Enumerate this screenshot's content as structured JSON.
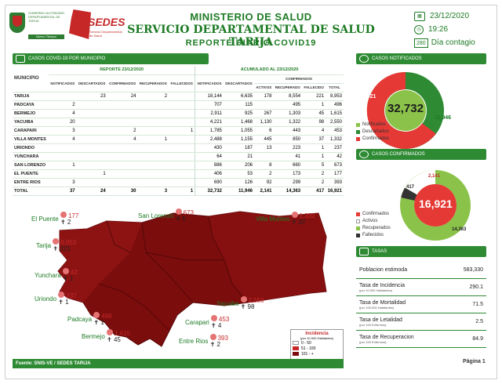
{
  "header": {
    "gob_text": "GOBIERNO AUTÓNOMO DEPARTAMENTAL DE TARIJA",
    "gob_bar": "Nuevo Tiempo",
    "sedes_logo": "SEDES",
    "sedes_sub": "Servicio Departamental de Salud",
    "title1": "MINISTERIO DE SALUD",
    "title2": "SERVICIO DEPARTAMENTAL DE SALUD TARIJA",
    "title3": "REPORTE DIARIO COVID19",
    "date": "23/12/2020",
    "time": "19:26",
    "day_num": "280",
    "day_label": "Día contagio"
  },
  "sections": {
    "table_bar": "CASOS COVID-19 POR MUNICIPIO",
    "notified_bar": "CASOS NOTIFICADOS",
    "confirmed_bar": "CASOS CONFIRMADOS",
    "tasas_bar": "TASAS"
  },
  "table": {
    "report_header": "REPORTE 23/12/2020",
    "accum_header": "ACUMULADO AL 23/12/2020",
    "confirmed_group": "CONFIRMADOS",
    "col_municipio": "MUNICIPIO",
    "cols_report": [
      "NOTIFICADOS",
      "DESCARTADOS",
      "CONFIRMADOS",
      "RECUPERADOS",
      "FALLECIDOS"
    ],
    "cols_accum": [
      "NOTIFICADOS",
      "DESCARTADOS",
      "ACTIVOS",
      "RECUPERADO",
      "FALLECIDO",
      "TOTAL"
    ],
    "rows": [
      {
        "m": "TARIJA",
        "r": [
          "",
          "23",
          "24",
          "2",
          ""
        ],
        "a": [
          "18,144",
          "6,635",
          "178",
          "8,554",
          "221",
          "8,953"
        ]
      },
      {
        "m": "PADCAYA",
        "r": [
          "2",
          "",
          "",
          "",
          ""
        ],
        "a": [
          "707",
          "115",
          "",
          "495",
          "1",
          "496"
        ]
      },
      {
        "m": "BERMEJO",
        "r": [
          "4",
          "",
          "",
          "",
          ""
        ],
        "a": [
          "2,911",
          "925",
          "267",
          "1,303",
          "45",
          "1,615"
        ]
      },
      {
        "m": "YACUIBA",
        "r": [
          "20",
          "",
          "",
          "",
          ""
        ],
        "a": [
          "4,221",
          "1,468",
          "1,130",
          "1,322",
          "98",
          "2,550"
        ]
      },
      {
        "m": "CARAPARI",
        "r": [
          "3",
          "",
          "2",
          "",
          "1"
        ],
        "a": [
          "1,785",
          "1,055",
          "6",
          "443",
          "4",
          "453"
        ]
      },
      {
        "m": "VILLA MONTES",
        "r": [
          "4",
          "",
          "4",
          "1",
          ""
        ],
        "a": [
          "2,488",
          "1,155",
          "445",
          "850",
          "37",
          "1,332"
        ]
      },
      {
        "m": "URIONDO",
        "r": [
          "",
          "",
          "",
          "",
          ""
        ],
        "a": [
          "430",
          "187",
          "13",
          "223",
          "1",
          "237"
        ]
      },
      {
        "m": "YUNCHARA",
        "r": [
          "",
          "",
          "",
          "",
          ""
        ],
        "a": [
          "64",
          "21",
          "",
          "41",
          "1",
          "42"
        ]
      },
      {
        "m": "SAN LORENZO",
        "r": [
          "1",
          "",
          "",
          "",
          ""
        ],
        "a": [
          "886",
          "206",
          "8",
          "660",
          "5",
          "673"
        ]
      },
      {
        "m": "EL PUENTE",
        "r": [
          "",
          "1",
          "",
          "",
          ""
        ],
        "a": [
          "406",
          "53",
          "2",
          "173",
          "2",
          "177"
        ]
      },
      {
        "m": "ENTRE RIOS",
        "r": [
          "3",
          "",
          "",
          "",
          ""
        ],
        "a": [
          "690",
          "126",
          "92",
          "299",
          "2",
          "393"
        ]
      }
    ],
    "total": {
      "m": "TOTAL",
      "r": [
        "37",
        "24",
        "30",
        "3",
        "1"
      ],
      "a": [
        "32,732",
        "11,946",
        "2,141",
        "14,363",
        "417",
        "16,921"
      ]
    }
  },
  "map_labels": [
    {
      "name": "El Puente",
      "c": "177",
      "f": "2"
    },
    {
      "name": "San Lorenzo",
      "c": "673",
      "f": "5"
    },
    {
      "name": "Villa Montes",
      "c": "1,332",
      "f": "37"
    },
    {
      "name": "Tarija",
      "c": "8,953",
      "f": "221"
    },
    {
      "name": "Yunchara",
      "c": "42",
      "f": "1"
    },
    {
      "name": "Uriondo",
      "c": "237",
      "f": "1"
    },
    {
      "name": "Padcaya",
      "c": "496",
      "f": "1"
    },
    {
      "name": "Yacuiba",
      "c": "2,550",
      "f": "98"
    },
    {
      "name": "Carapari",
      "c": "453",
      "f": "4"
    },
    {
      "name": "Bermejo",
      "c": "1,615",
      "f": "45"
    },
    {
      "name": "Entre Rios",
      "c": "393",
      "f": "2"
    }
  ],
  "legend": {
    "title": "Incidencia",
    "subtitle": "(por 10.000 Habitantes)",
    "items": [
      "0 - 50",
      "51 - 100",
      "101 - +"
    ],
    "colors": [
      "#ffffff",
      "#c62828",
      "#7b0d0d"
    ]
  },
  "footer": {
    "source": "Fuente: SNIS-VE / SEDES TARIJA",
    "page": "Página 1"
  },
  "notified": {
    "total": "32,732",
    "confirmed": "16,921",
    "discarded": "11,946",
    "legend": [
      "Notificados",
      "Descartados",
      "Confirmados"
    ],
    "colors": [
      "#8bc34a",
      "#2e8b34",
      "#e53935"
    ]
  },
  "confirmed": {
    "total": "16,921",
    "active": "2,141",
    "recovered": "14,363",
    "deceased": "417",
    "legend": [
      "Confirmados",
      "Activos",
      "Recuperados",
      "Fallecidos"
    ],
    "colors": [
      "#e53935",
      "#ffffff",
      "#8bc34a",
      "#333333"
    ]
  },
  "tasas": [
    {
      "label": "Poblacion estimoda",
      "sub": "",
      "value": "583,330"
    },
    {
      "label": "Tasa de Incidencia",
      "sub": "(por 10.000 Habitantes)",
      "value": "290.1"
    },
    {
      "label": "Tasa de Mortalidad",
      "sub": "(por 100.000 Habitantes)",
      "value": "71.5"
    },
    {
      "label": "Tasa de Letalidad",
      "sub": "(por 100 Enfermos)",
      "value": "2.5"
    },
    {
      "label": "Tasa de Recuperacion",
      "sub": "(por 100 Enfermos)",
      "value": "84.9"
    }
  ]
}
